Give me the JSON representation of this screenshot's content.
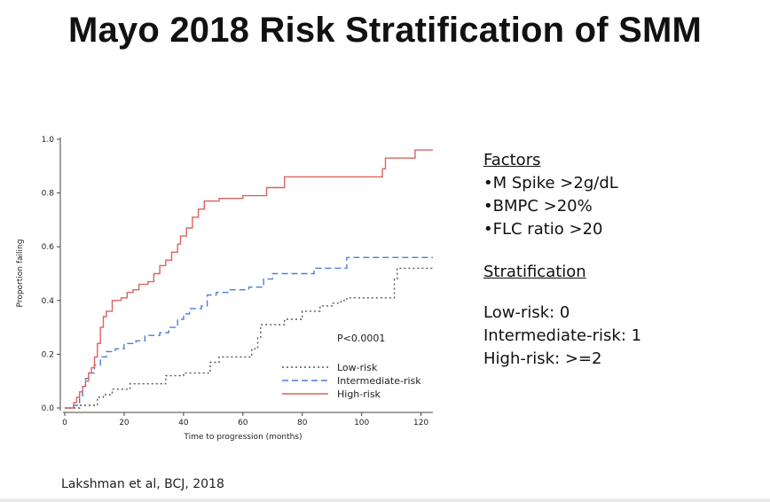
{
  "slide": {
    "title": "Mayo 2018 Risk Stratification of SMM",
    "citation": "Lakshman et al, BCJ, 2018"
  },
  "panel": {
    "factors_heading": "Factors",
    "factors": [
      "•M Spike >2g/dL",
      "•BMPC >20%",
      "•FLC ratio >20"
    ],
    "stratification_heading": "Stratification",
    "stratification": [
      "Low-risk: 0",
      "Intermediate-risk: 1",
      "High-risk: >=2"
    ]
  },
  "chart_data": {
    "type": "line",
    "step": true,
    "xlabel": "Time to progression (months)",
    "ylabel": "Proportion failing",
    "xlim": [
      0,
      124
    ],
    "ylim": [
      0,
      1.0
    ],
    "x_ticks": [
      0,
      20,
      40,
      60,
      80,
      100,
      120
    ],
    "y_ticks": [
      0.0,
      0.2,
      0.4,
      0.6,
      0.8,
      1.0
    ],
    "x_tick_labels": [
      "0",
      "20",
      "40",
      "60",
      "80",
      "100",
      "120"
    ],
    "y_tick_labels": [
      "0.0",
      "0.2",
      "0.4",
      "0.6",
      "0.8",
      "1.0"
    ],
    "annotation": "P<0.0001",
    "legend_position": "bottom-center",
    "series": [
      {
        "name": "Low-risk",
        "color": "#555555",
        "dash": "dotted",
        "points": [
          [
            0,
            0
          ],
          [
            3,
            0
          ],
          [
            5,
            0.01
          ],
          [
            10,
            0.01
          ],
          [
            11,
            0.04
          ],
          [
            13,
            0.05
          ],
          [
            16,
            0.07
          ],
          [
            22,
            0.09
          ],
          [
            33,
            0.09
          ],
          [
            34,
            0.12
          ],
          [
            40,
            0.13
          ],
          [
            48,
            0.13
          ],
          [
            49,
            0.17
          ],
          [
            52,
            0.19
          ],
          [
            63,
            0.22
          ],
          [
            65,
            0.26
          ],
          [
            66,
            0.31
          ],
          [
            74,
            0.33
          ],
          [
            80,
            0.36
          ],
          [
            86,
            0.38
          ],
          [
            90,
            0.39
          ],
          [
            93,
            0.4
          ],
          [
            95,
            0.41
          ],
          [
            110,
            0.41
          ],
          [
            111,
            0.48
          ],
          [
            112,
            0.52
          ],
          [
            124,
            0.52
          ]
        ]
      },
      {
        "name": "Intermediate-risk",
        "color": "#4a7fd8",
        "dash": "dashed",
        "points": [
          [
            0,
            0
          ],
          [
            2,
            0
          ],
          [
            3,
            0.01
          ],
          [
            5,
            0.04
          ],
          [
            6,
            0.08
          ],
          [
            7,
            0.11
          ],
          [
            8,
            0.13
          ],
          [
            10,
            0.16
          ],
          [
            12,
            0.19
          ],
          [
            14,
            0.21
          ],
          [
            17,
            0.22
          ],
          [
            20,
            0.24
          ],
          [
            24,
            0.25
          ],
          [
            27,
            0.27
          ],
          [
            32,
            0.28
          ],
          [
            35,
            0.3
          ],
          [
            38,
            0.33
          ],
          [
            40,
            0.35
          ],
          [
            42,
            0.37
          ],
          [
            46,
            0.38
          ],
          [
            48,
            0.42
          ],
          [
            51,
            0.43
          ],
          [
            55,
            0.44
          ],
          [
            62,
            0.45
          ],
          [
            67,
            0.48
          ],
          [
            70,
            0.5
          ],
          [
            84,
            0.52
          ],
          [
            95,
            0.56
          ],
          [
            124,
            0.56
          ]
        ]
      },
      {
        "name": "High-risk",
        "color": "#d9645f",
        "dash": "solid",
        "points": [
          [
            0,
            0
          ],
          [
            2,
            0
          ],
          [
            3,
            0.02
          ],
          [
            4,
            0.04
          ],
          [
            5,
            0.06
          ],
          [
            6,
            0.08
          ],
          [
            7,
            0.1
          ],
          [
            8,
            0.13
          ],
          [
            9,
            0.15
          ],
          [
            10,
            0.19
          ],
          [
            11,
            0.24
          ],
          [
            12,
            0.3
          ],
          [
            13,
            0.34
          ],
          [
            14,
            0.36
          ],
          [
            16,
            0.4
          ],
          [
            19,
            0.41
          ],
          [
            21,
            0.43
          ],
          [
            23,
            0.44
          ],
          [
            25,
            0.46
          ],
          [
            28,
            0.47
          ],
          [
            30,
            0.5
          ],
          [
            32,
            0.53
          ],
          [
            34,
            0.55
          ],
          [
            36,
            0.58
          ],
          [
            38,
            0.61
          ],
          [
            39,
            0.64
          ],
          [
            41,
            0.67
          ],
          [
            43,
            0.71
          ],
          [
            45,
            0.74
          ],
          [
            47,
            0.77
          ],
          [
            52,
            0.78
          ],
          [
            60,
            0.79
          ],
          [
            68,
            0.82
          ],
          [
            74,
            0.86
          ],
          [
            106,
            0.86
          ],
          [
            107,
            0.89
          ],
          [
            108,
            0.93
          ],
          [
            118,
            0.96
          ],
          [
            124,
            0.96
          ]
        ]
      }
    ]
  }
}
